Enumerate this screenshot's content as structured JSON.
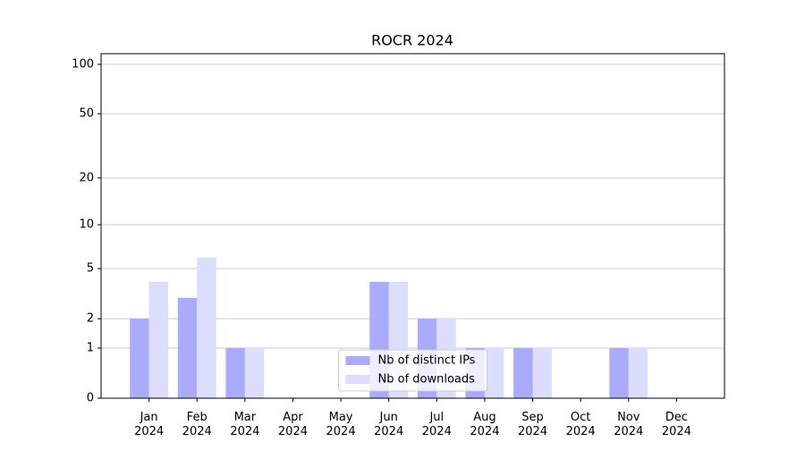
{
  "chart_data": {
    "type": "bar",
    "title": "ROCR 2024",
    "categories": [
      "Jan\n2024",
      "Feb\n2024",
      "Mar\n2024",
      "Apr\n2024",
      "May\n2024",
      "Jun\n2024",
      "Jul\n2024",
      "Aug\n2024",
      "Sep\n2024",
      "Oct\n2024",
      "Nov\n2024",
      "Dec\n2024"
    ],
    "series": [
      {
        "name": "Nb of distinct IPs",
        "color": "#aaaaff",
        "values": [
          2,
          3,
          1,
          0,
          0,
          4,
          2,
          1,
          1,
          0,
          1,
          0
        ]
      },
      {
        "name": "Nb of downloads",
        "color": "#ddddff",
        "values": [
          4,
          6,
          1,
          0,
          0,
          4,
          2,
          1,
          1,
          0,
          1,
          0
        ]
      }
    ],
    "yscale": "log1p",
    "ylim": [
      0,
      116
    ],
    "yticks": [
      0,
      1,
      2,
      5,
      10,
      20,
      50,
      100
    ],
    "grid": true,
    "legend": "lower center"
  }
}
